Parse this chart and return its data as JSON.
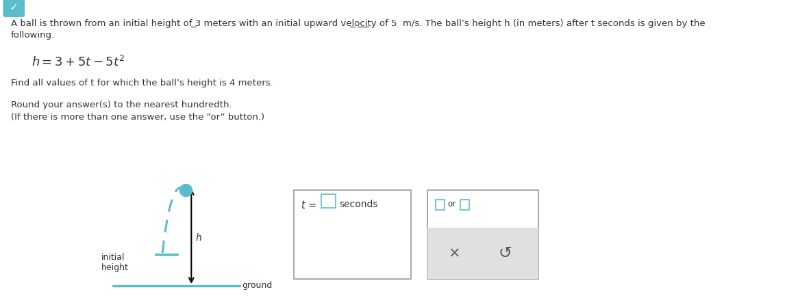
{
  "bg_color": "#ffffff",
  "text_color": "#333333",
  "teal_color": "#5bbccc",
  "fs_main": 9.5,
  "fs_formula": 12,
  "fs_small": 9,
  "line1": "A ball is thrown from an initial height of 3 meters with an initial upward velocity of 5  m/s. The ball’s height h (in meters) after t seconds is given by the",
  "line2": "following.",
  "find_text": "Find all values of t for which the ball’s height is 4 meters.",
  "round_text": "Round your answer(s) to the nearest hundredth.",
  "if_text": "(If there is more than one answer, use the “or” button.)",
  "seconds_label": "seconds",
  "or_label": "or",
  "ground_label": "ground",
  "initial_label": "initial",
  "height_label": "height"
}
